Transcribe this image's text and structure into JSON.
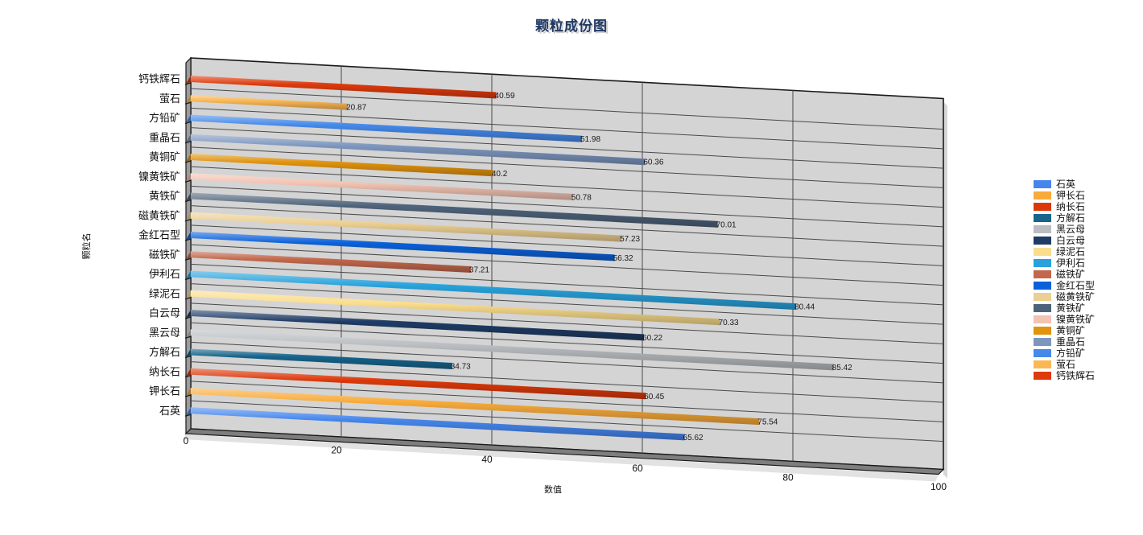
{
  "chart_data": {
    "type": "bar",
    "orientation": "horizontal-3d",
    "title": "颗粒成份图",
    "xlabel": "数值",
    "ylabel": "颗粒名",
    "xlim": [
      0,
      100
    ],
    "x_ticks": [
      0,
      20,
      40,
      60,
      80,
      100
    ],
    "grid": true,
    "legend_position": "right",
    "value_labels_shown": true,
    "rows": [
      {
        "label": "钙铁辉石",
        "value": 40.59,
        "color": "#de3a0c"
      },
      {
        "label": "萤石",
        "value": 20.87,
        "color": "#fab854"
      },
      {
        "label": "方铅矿",
        "value": 51.98,
        "color": "#4589ea"
      },
      {
        "label": "重晶石",
        "value": 60.36,
        "color": "#7d96bf"
      },
      {
        "label": "黄铜矿",
        "value": 40.2,
        "color": "#e1930d"
      },
      {
        "label": "镍黄铁矿",
        "value": 50.78,
        "color": "#f2c3b2"
      },
      {
        "label": "黄铁矿",
        "value": 70.01,
        "color": "#4e637a"
      },
      {
        "label": "磁黄铁矿",
        "value": 57.23,
        "color": "#eccf92"
      },
      {
        "label": "金红石型",
        "value": 56.32,
        "color": "#0b61da"
      },
      {
        "label": "磁铁矿",
        "value": 37.21,
        "color": "#c2684c"
      },
      {
        "label": "伊利石",
        "value": 80.44,
        "color": "#28a2dc"
      },
      {
        "label": "绿泥石",
        "value": 70.33,
        "color": "#fadd8c"
      },
      {
        "label": "白云母",
        "value": 60.22,
        "color": "#1f3c66"
      },
      {
        "label": "黑云母",
        "value": 85.42,
        "color": "#babec2"
      },
      {
        "label": "方解石",
        "value": 34.73,
        "color": "#17648c"
      },
      {
        "label": "纳长石",
        "value": 60.45,
        "color": "#dc390a"
      },
      {
        "label": "钾长石",
        "value": 75.54,
        "color": "#f8ab3a"
      },
      {
        "label": "石英",
        "value": 65.62,
        "color": "#4586ec"
      }
    ],
    "legend": [
      {
        "label": "石英",
        "color": "#4586ec"
      },
      {
        "label": "钾长石",
        "color": "#f8ab3a"
      },
      {
        "label": "纳长石",
        "color": "#dc390a"
      },
      {
        "label": "方解石",
        "color": "#17648c"
      },
      {
        "label": "黑云母",
        "color": "#babec2"
      },
      {
        "label": "白云母",
        "color": "#1f3c66"
      },
      {
        "label": "绿泥石",
        "color": "#fadd8c"
      },
      {
        "label": "伊利石",
        "color": "#28a2dc"
      },
      {
        "label": "磁铁矿",
        "color": "#c2684c"
      },
      {
        "label": "金红石型",
        "color": "#0b61da"
      },
      {
        "label": "磁黄铁矿",
        "color": "#eccf92"
      },
      {
        "label": "黄铁矿",
        "color": "#4e637a"
      },
      {
        "label": "镍黄铁矿",
        "color": "#f2c3b2"
      },
      {
        "label": "黄铜矿",
        "color": "#e1930d"
      },
      {
        "label": "重晶石",
        "color": "#7d96bf"
      },
      {
        "label": "方铅矿",
        "color": "#4589ea"
      },
      {
        "label": "萤石",
        "color": "#fab854"
      },
      {
        "label": "钙铁辉石",
        "color": "#de3a0c"
      }
    ],
    "colors": {
      "plot_bg": "#d4d4d4",
      "left_wall": "#9c9c9c",
      "floor": "#7e7e7e",
      "gridline": "#4a4a4a",
      "frame": "#1a1a1a",
      "title": "#1f3864",
      "text": "#111111",
      "shadow": "#d6d6d6"
    }
  }
}
